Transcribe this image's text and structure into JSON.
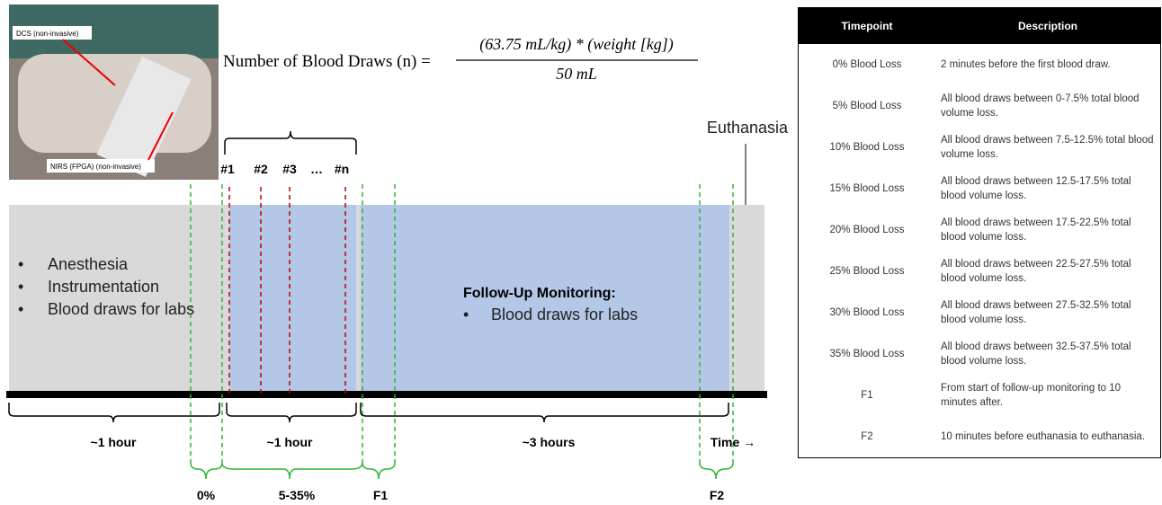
{
  "photo": {
    "label_top": "DCS (non-invasive)",
    "label_bottom": "NIRS (FPGA) (non-invasive)"
  },
  "formula": {
    "lhs": "Number of Blood Draws (n) =",
    "numerator": "(63.75 mL/kg) * (weight [kg])",
    "denominator": "50 mL"
  },
  "draws": [
    "#1",
    "#2",
    "#3",
    "…",
    "#n"
  ],
  "euthanasia": "Euthanasia",
  "phase1": {
    "bullets": [
      "Anesthesia",
      "Instrumentation",
      "Blood draws for labs"
    ]
  },
  "phase3": {
    "title": "Follow-Up Monitoring:",
    "bullets": [
      "Blood draws for labs"
    ]
  },
  "durations": [
    "~1 hour",
    "~1 hour",
    "~3 hours",
    "Time →"
  ],
  "timepoints": [
    "0%",
    "5-35%",
    "F1",
    "F2"
  ],
  "table": {
    "header": [
      "Timepoint",
      "Description"
    ],
    "rows": [
      [
        "0% Blood Loss",
        "2 minutes before the first blood draw."
      ],
      [
        "5% Blood Loss",
        "All blood draws between 0-7.5% total blood volume loss."
      ],
      [
        "10% Blood Loss",
        "All blood draws between 7.5-12.5% total blood volume loss."
      ],
      [
        "15% Blood Loss",
        "All blood draws between 12.5-17.5% total blood volume loss."
      ],
      [
        "20% Blood Loss",
        "All blood draws between 17.5-22.5% total blood volume loss."
      ],
      [
        "25% Blood Loss",
        "All blood draws between 22.5-27.5% total blood volume loss."
      ],
      [
        "30% Blood Loss",
        "All blood draws between 27.5-32.5% total blood volume loss."
      ],
      [
        "35% Blood Loss",
        "All blood draws between 32.5-37.5% total blood volume loss."
      ],
      [
        "F1",
        "From start of follow-up monitoring to 10 minutes after."
      ],
      [
        "F2",
        "10 minutes before euthanasia to euthanasia."
      ]
    ]
  }
}
